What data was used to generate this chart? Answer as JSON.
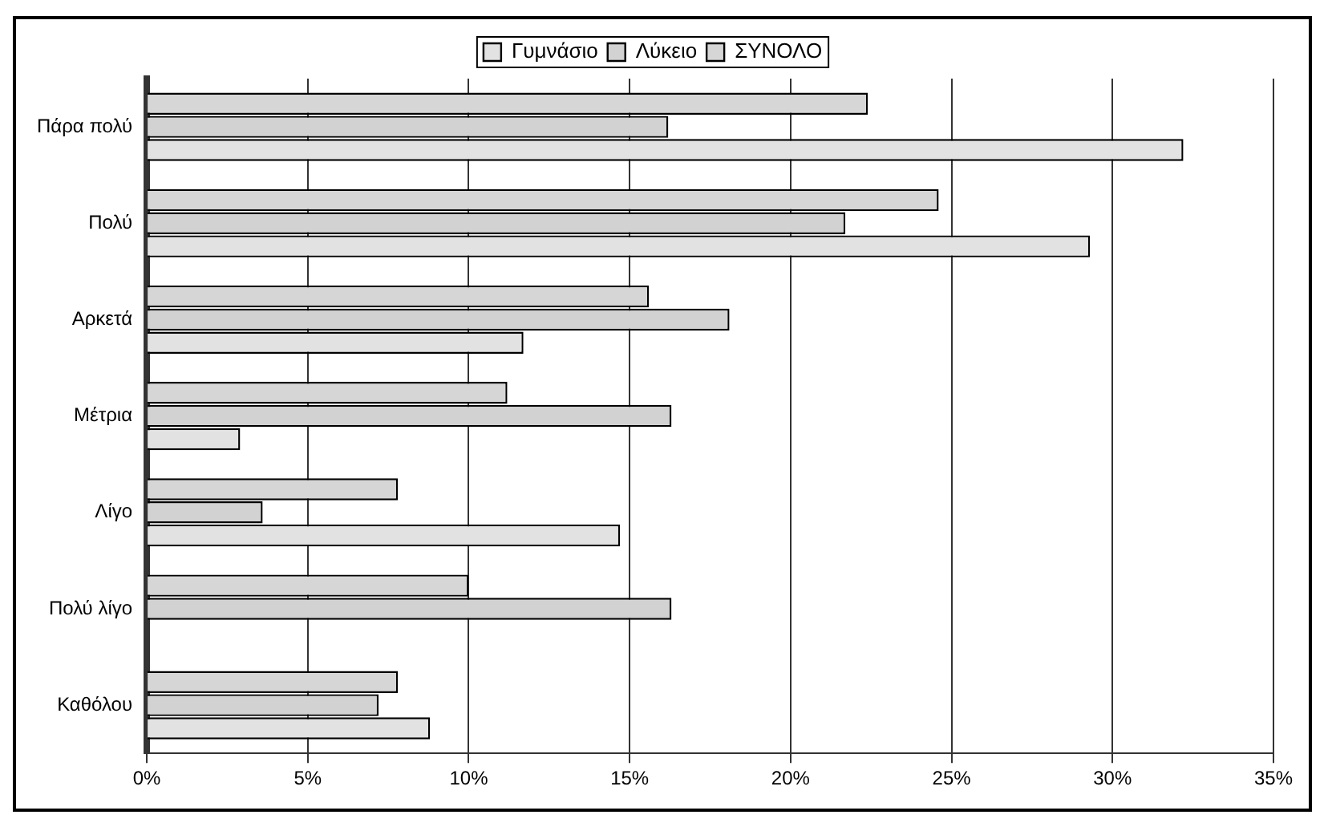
{
  "chart_data": {
    "type": "bar",
    "orientation": "horizontal",
    "categories": [
      "Πάρα πολύ",
      "Πολύ",
      "Αρκετά",
      "Μέτρια",
      "Λίγο",
      "Πολύ λίγο",
      "Καθόλου"
    ],
    "series": [
      {
        "name": "Γυμνάσιο",
        "color": "#e2e2e2",
        "values": [
          32.2,
          29.3,
          11.7,
          2.9,
          14.7,
          0,
          8.8
        ]
      },
      {
        "name": "Λύκειο",
        "color": "#d2d2d2",
        "values": [
          16.2,
          21.7,
          18.1,
          16.3,
          3.6,
          16.3,
          7.2
        ]
      },
      {
        "name": "ΣΥΝΟΛΟ",
        "color": "#d6d6d6",
        "values": [
          22.4,
          24.6,
          15.6,
          11.2,
          7.8,
          10.0,
          7.8
        ]
      }
    ],
    "xlim": [
      0,
      35
    ],
    "xticks": [
      {
        "value": 0,
        "label": "0%"
      },
      {
        "value": 5,
        "label": "5%"
      },
      {
        "value": 10,
        "label": "10%"
      },
      {
        "value": 15,
        "label": "15%"
      },
      {
        "value": 20,
        "label": "20%"
      },
      {
        "value": 25,
        "label": "25%"
      },
      {
        "value": 30,
        "label": "30%"
      },
      {
        "value": 35,
        "label": "35%"
      }
    ],
    "grid": "x",
    "legend": "top"
  }
}
